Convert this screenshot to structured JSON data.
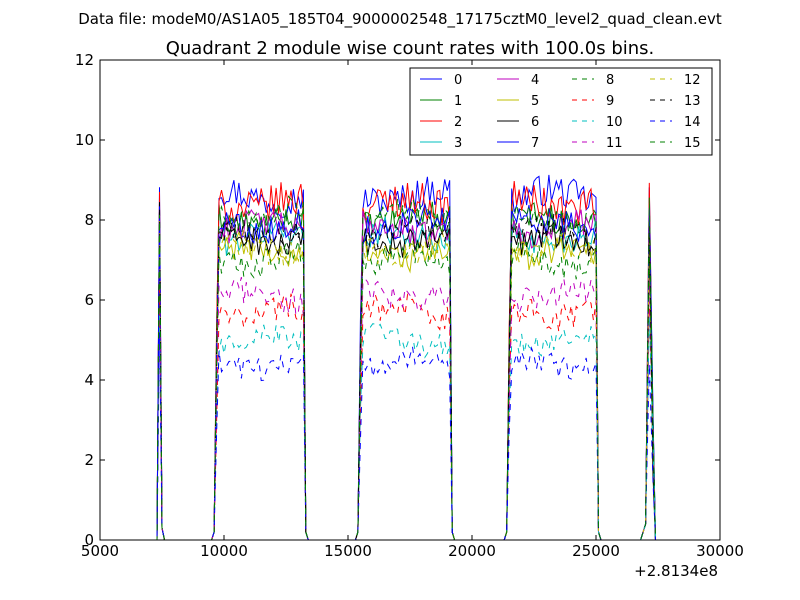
{
  "chart_data": {
    "type": "line",
    "suptitle": "Data file: modeM0/AS1A05_185T04_9000002548_17175cztM0_level2_quad_clean.evt",
    "title": "Quadrant 2 module wise count rates with 100.0s bins.",
    "xlabel": "",
    "ylabel": "",
    "x_offset_label": "+2.8134e8",
    "xlim": [
      5000,
      30000
    ],
    "ylim": [
      0,
      12
    ],
    "x_ticks": [
      5000,
      10000,
      15000,
      20000,
      25000,
      30000
    ],
    "y_ticks": [
      0,
      2,
      4,
      6,
      8,
      10,
      12
    ],
    "x_tick_labels": [
      "5000",
      "10000",
      "15000",
      "20000",
      "25000",
      "30000"
    ],
    "y_tick_labels": [
      "0",
      "2",
      "4",
      "6",
      "8",
      "10",
      "12"
    ],
    "grid": false,
    "legend_position": "top-right",
    "legend_columns": 4,
    "segments": [
      {
        "start": 7400,
        "end": 7500
      },
      {
        "start": 9600,
        "end": 13300
      },
      {
        "start": 15400,
        "end": 19200
      },
      {
        "start": 21400,
        "end": 25100
      },
      {
        "start": 26900,
        "end": 27300
      }
    ],
    "series": [
      {
        "name": "0",
        "color": "#0000ff",
        "dash": "solid",
        "level": 8.6,
        "amp": 0.4
      },
      {
        "name": "1",
        "color": "#008000",
        "dash": "solid",
        "level": 8.0,
        "amp": 0.35
      },
      {
        "name": "2",
        "color": "#ff0000",
        "dash": "solid",
        "level": 8.4,
        "amp": 0.45
      },
      {
        "name": "3",
        "color": "#00bfbf",
        "dash": "solid",
        "level": 7.6,
        "amp": 0.35
      },
      {
        "name": "4",
        "color": "#bf00bf",
        "dash": "solid",
        "level": 7.8,
        "amp": 0.35
      },
      {
        "name": "5",
        "color": "#bfbf00",
        "dash": "solid",
        "level": 7.2,
        "amp": 0.35
      },
      {
        "name": "6",
        "color": "#000000",
        "dash": "solid",
        "level": 7.5,
        "amp": 0.35
      },
      {
        "name": "7",
        "color": "#0000ff",
        "dash": "solid",
        "level": 7.9,
        "amp": 0.35
      },
      {
        "name": "8",
        "color": "#008000",
        "dash": "dashed",
        "level": 7.0,
        "amp": 0.35
      },
      {
        "name": "9",
        "color": "#ff0000",
        "dash": "dashed",
        "level": 5.7,
        "amp": 0.35
      },
      {
        "name": "10",
        "color": "#00bfbf",
        "dash": "dashed",
        "level": 5.0,
        "amp": 0.3
      },
      {
        "name": "11",
        "color": "#bf00bf",
        "dash": "dashed",
        "level": 6.1,
        "amp": 0.35
      },
      {
        "name": "12",
        "color": "#bfbf00",
        "dash": "dashed",
        "level": 7.3,
        "amp": 0.35
      },
      {
        "name": "13",
        "color": "#000000",
        "dash": "dashed",
        "level": 7.7,
        "amp": 0.35
      },
      {
        "name": "14",
        "color": "#0000ff",
        "dash": "dashed",
        "level": 4.4,
        "amp": 0.3
      },
      {
        "name": "15",
        "color": "#008000",
        "dash": "dashed",
        "level": 8.1,
        "amp": 0.35
      }
    ]
  }
}
